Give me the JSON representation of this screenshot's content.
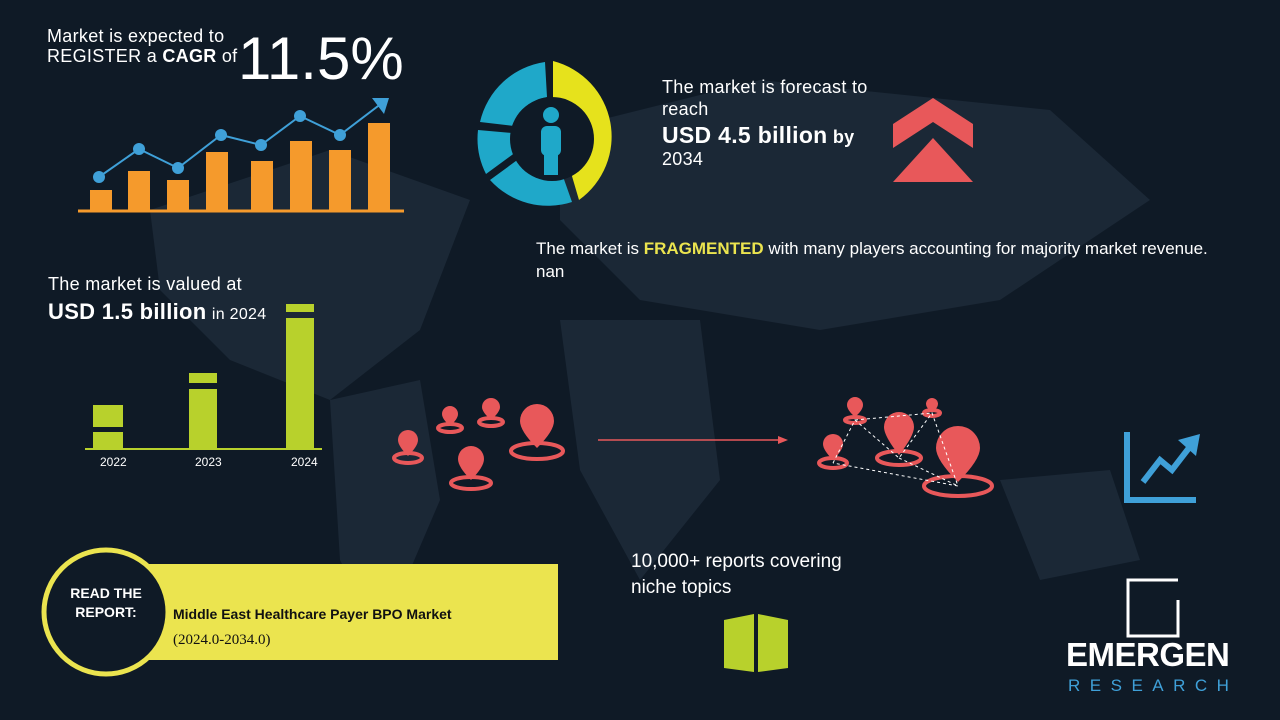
{
  "cagr": {
    "line1": "Market is expected to",
    "line2a": "REGISTER a",
    "line2b": "CAGR",
    "line2c": "of",
    "value": "11.5%"
  },
  "forecast": {
    "line1": "The market is forecast to reach",
    "amount": "USD 4.5 billion",
    "by": "by",
    "year": "2034"
  },
  "fragmented": {
    "prefix": "The market is",
    "highlight": "FRAGMENTED",
    "suffix": "with many players accounting for majority market revenue. nan"
  },
  "valued": {
    "line1": "The market is valued at",
    "amount": "USD 1.5 billion",
    "suffix": "in 2024",
    "years": [
      "2022",
      "2023",
      "2024"
    ]
  },
  "reports": {
    "text": "10,000+ reports covering niche topics"
  },
  "read": {
    "label": "READ THE REPORT:",
    "title": "Middle East Healthcare Payer BPO Market",
    "period": "(2024.0-2034.0)"
  },
  "logo": {
    "name": "EMERGEN",
    "sub": "RESEARCH"
  }
}
